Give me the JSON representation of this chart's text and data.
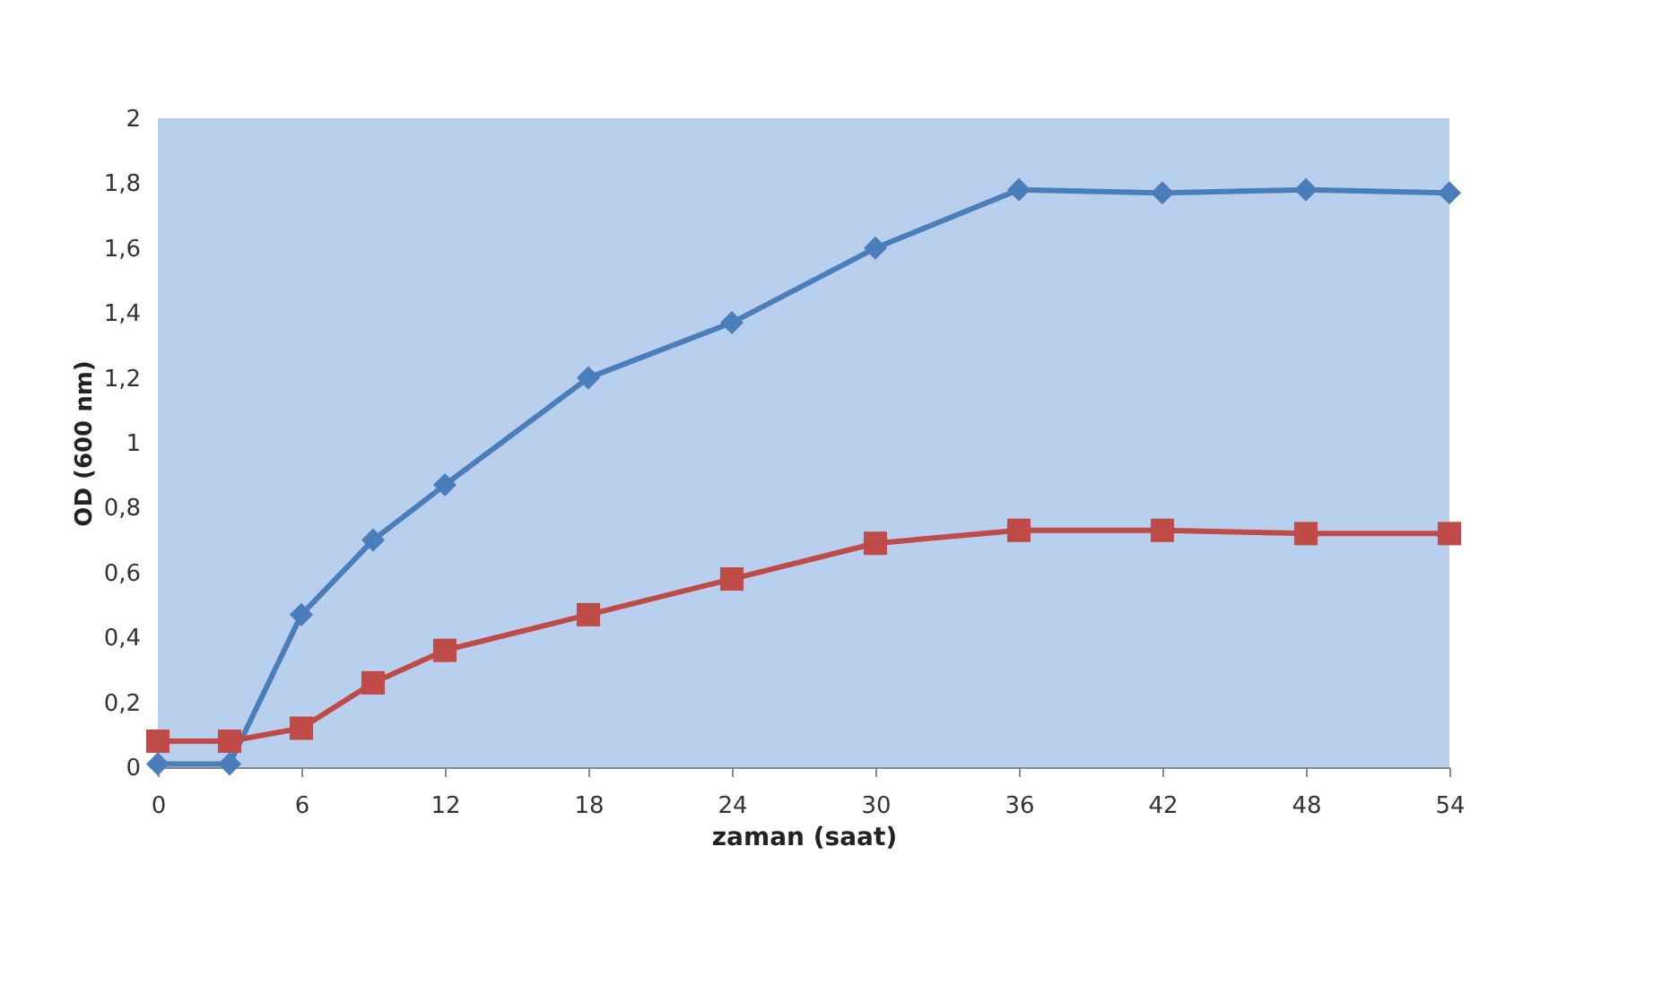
{
  "chart_data": {
    "type": "line",
    "xlabel": "zaman (saat)",
    "ylabel": "OD (600 nm)",
    "x": [
      0,
      3,
      6,
      9,
      12,
      18,
      24,
      30,
      36,
      42,
      48,
      54
    ],
    "series": [
      {
        "color": "#4a7ebb",
        "marker": "diamond",
        "values": [
          0.01,
          0.01,
          0.47,
          0.7,
          0.87,
          1.2,
          1.37,
          1.6,
          1.78,
          1.77,
          1.78,
          1.77
        ]
      },
      {
        "color": "#be4b48",
        "marker": "square",
        "values": [
          0.08,
          0.08,
          0.12,
          0.26,
          0.36,
          0.47,
          0.58,
          0.69,
          0.73,
          0.73,
          0.72,
          0.72
        ]
      }
    ],
    "xlim": [
      0,
      54
    ],
    "xticks": [
      0,
      6,
      12,
      18,
      24,
      30,
      36,
      42,
      48,
      54
    ],
    "ylim": [
      0,
      2
    ],
    "yticks": [
      0,
      {
        "value": 0.2,
        "label": "0,2"
      },
      {
        "value": 0.4,
        "label": "0,4"
      },
      {
        "value": 0.6,
        "label": "0,6"
      },
      {
        "value": 0.8,
        "label": "0,8"
      },
      1,
      {
        "value": 1.2,
        "label": "1,2"
      },
      {
        "value": 1.4,
        "label": "1,4"
      },
      {
        "value": 1.6,
        "label": "1,6"
      },
      {
        "value": 1.8,
        "label": "1,8"
      },
      2
    ],
    "line_style": "solid"
  }
}
